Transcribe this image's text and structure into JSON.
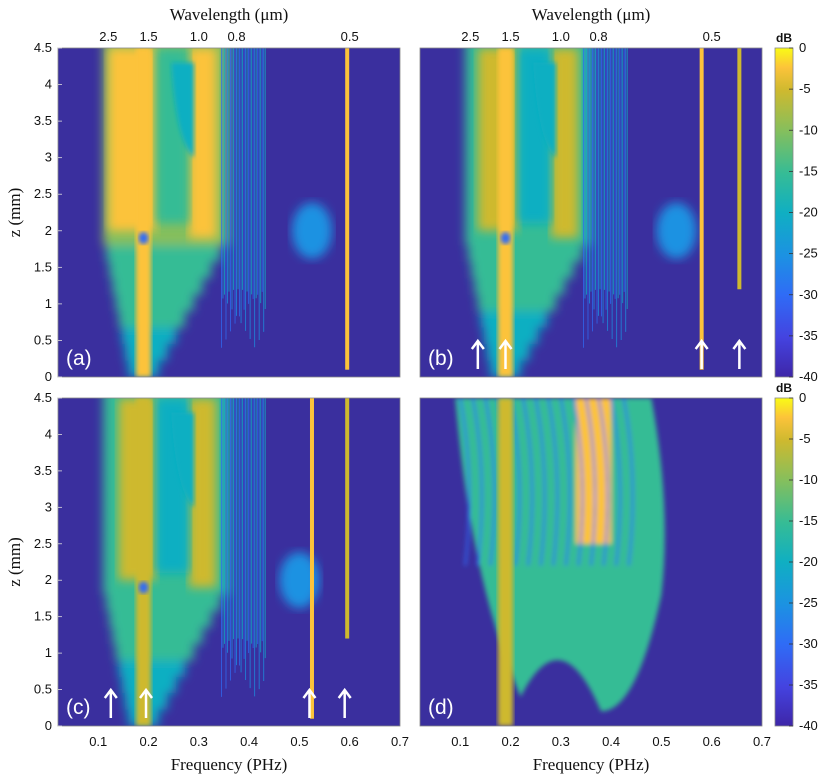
{
  "colors": {
    "background": "#3a2f9e",
    "colormap": [
      "#3e26a8",
      "#4443e0",
      "#2f6cf6",
      "#1c92e2",
      "#10afc2",
      "#36bc95",
      "#86bf5c",
      "#ceb92f",
      "#fcc33a",
      "#f9fb15"
    ]
  },
  "icons": {
    "arrow": "up-arrow-icon"
  },
  "chart_data": {
    "type": "heatmap",
    "colorbar": {
      "title": "dB",
      "range": [
        -40,
        0
      ],
      "ticks": [
        "0",
        "-5",
        "-10",
        "-15",
        "-20",
        "-25",
        "-30",
        "-35",
        "-40"
      ]
    },
    "xaxis": {
      "label": "Frequency (PHz)",
      "range": [
        0.02,
        0.7
      ],
      "ticks": [
        "0.1",
        "0.2",
        "0.3",
        "0.4",
        "0.5",
        "0.6",
        "0.7"
      ]
    },
    "yaxis": {
      "label": "z (mm)",
      "range": [
        0,
        4.5
      ],
      "ticks": [
        "0",
        "0.5",
        "1",
        "1.5",
        "2",
        "2.5",
        "3",
        "3.5",
        "4",
        "4.5"
      ]
    },
    "top_axis": {
      "label": "Wavelength (μm)",
      "ticks": [
        {
          "label": "2.5",
          "frequency": 0.12
        },
        {
          "label": "1.5",
          "frequency": 0.2
        },
        {
          "label": "1.0",
          "frequency": 0.3
        },
        {
          "label": "0.8",
          "frequency": 0.375
        },
        {
          "label": "0.5",
          "frequency": 0.6
        }
      ]
    },
    "panels": [
      {
        "id": "a",
        "label": "(a)",
        "arrows": [],
        "features": {
          "pump_level": 0.95,
          "mid_band": 0.75,
          "sideband_freqs": [
            0.595
          ],
          "bands": [
            0.525
          ]
        }
      },
      {
        "id": "b",
        "label": "(b)",
        "arrows": [
          0.135,
          0.19,
          0.58,
          0.655
        ],
        "features": {
          "pump_level": 0.95,
          "mid_band": 0.55,
          "sideband_freqs": [
            0.58,
            0.655
          ],
          "bands": [
            0.53
          ]
        }
      },
      {
        "id": "c",
        "label": "(c)",
        "arrows": [
          0.125,
          0.195,
          0.52,
          0.59
        ],
        "features": {
          "pump_level": 0.85,
          "mid_band": 0.5,
          "sideband_freqs": [
            0.525,
            0.595
          ],
          "bands": [
            0.5
          ]
        }
      },
      {
        "id": "d",
        "label": "(d)",
        "arrows": [],
        "features": {
          "pump_level": 0.9,
          "mid_band": 0.6,
          "sideband_freqs": [],
          "bands": [],
          "turbulent": true
        }
      }
    ]
  }
}
